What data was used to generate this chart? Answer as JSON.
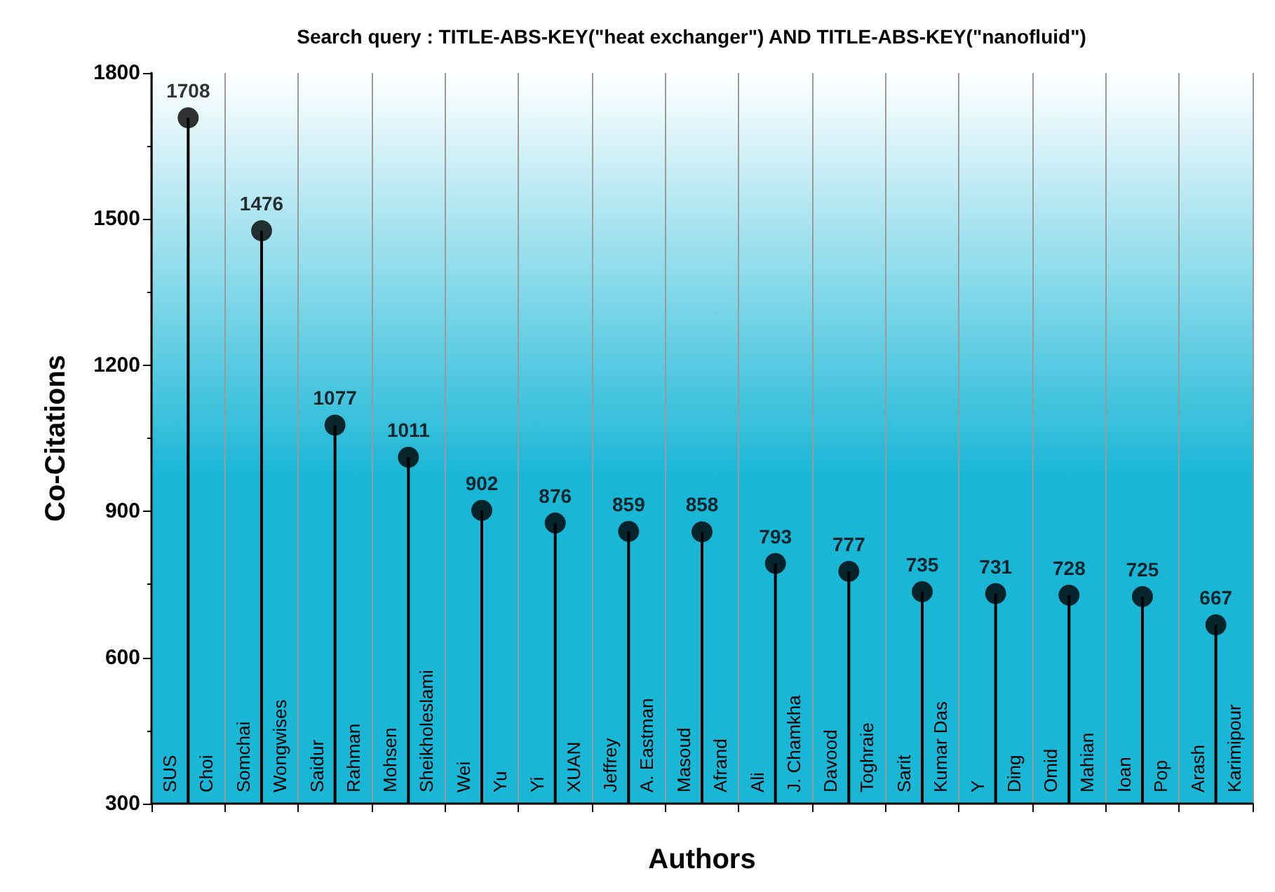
{
  "chart_data": {
    "type": "lollipop",
    "title": "Search query : TITLE-ABS-KEY(\"heat exchanger\") AND TITLE-ABS-KEY(\"nanofluid\")",
    "xlabel": "Authors",
    "ylabel": "Co-Citations",
    "categories": [
      "SUS Choi",
      "Somchai Wongwises",
      "Saidur Rahman",
      "Mohsen Sheikholeslami",
      "Wei Yu",
      "Yi XUAN",
      "Jeffrey A. Eastman",
      "Masoud Afrand",
      "Ali J. Chamkha",
      "Davood Toghraie",
      "Sarit Kumar Das",
      "Y Ding",
      "Omid Mahian",
      "Ioan Pop",
      "Arash Karimipour"
    ],
    "values": [
      1708,
      1476,
      1077,
      1011,
      902,
      876,
      859,
      858,
      793,
      777,
      735,
      731,
      728,
      725,
      667
    ],
    "color": "#000000",
    "marker": "circle",
    "data_labels": true,
    "grid": "x",
    "ylim": [
      300,
      1800
    ],
    "yticks": [
      300,
      600,
      900,
      1200,
      1500,
      1800
    ]
  }
}
